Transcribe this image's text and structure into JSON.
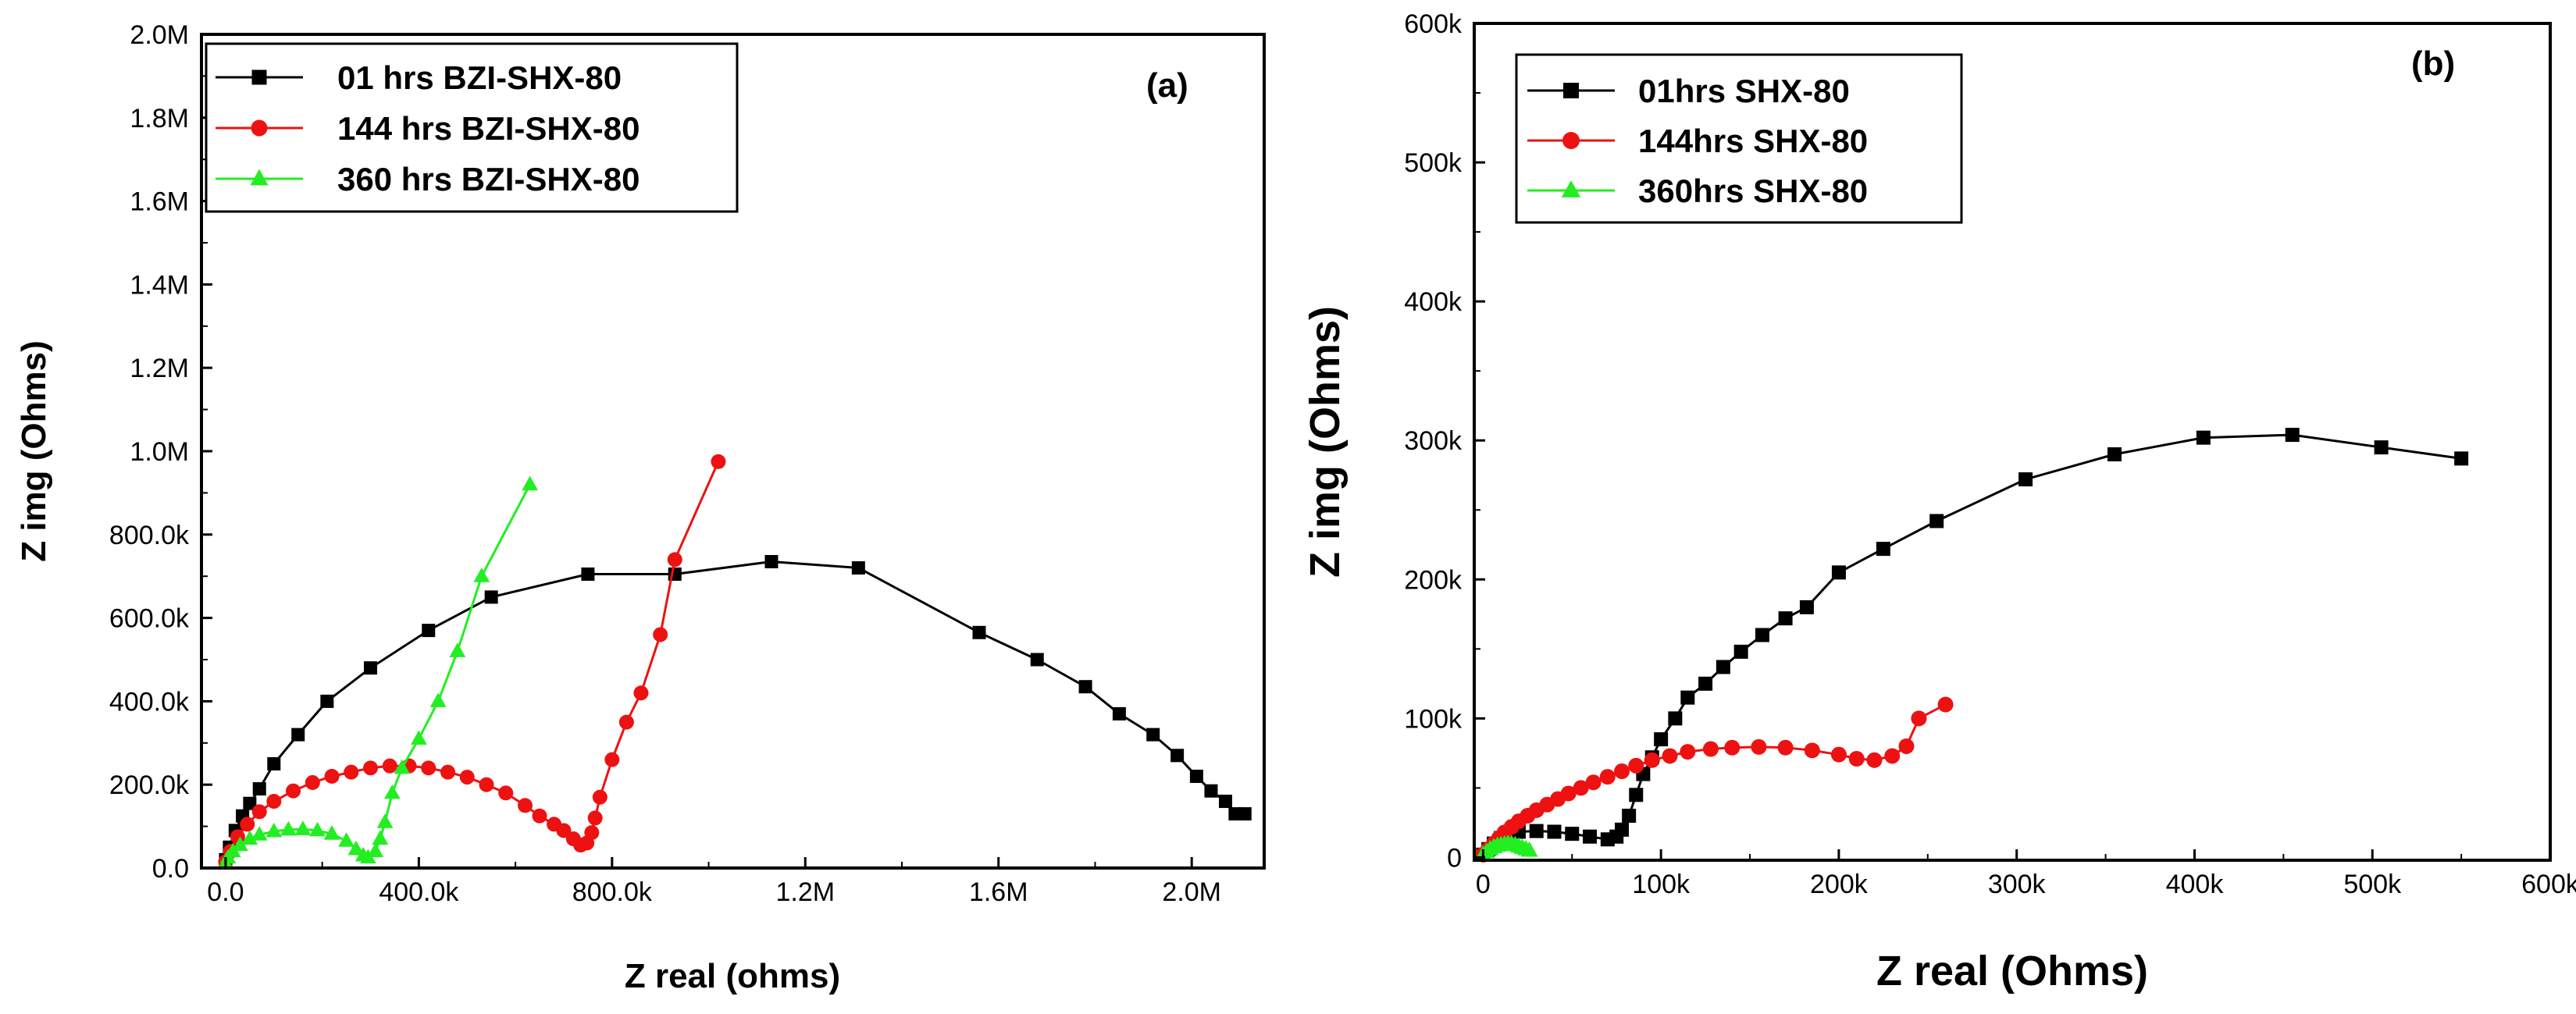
{
  "chart_data": [
    {
      "type": "line",
      "panel_label": "(a)",
      "xlabel": "Z real (ohms)",
      "ylabel": "Z img (Ohms)",
      "xlim": [
        -50000,
        2150000
      ],
      "ylim": [
        0,
        2000000
      ],
      "x_ticks": [
        {
          "v": 0,
          "label": "0.0"
        },
        {
          "v": 400000,
          "label": "400.0k"
        },
        {
          "v": 800000,
          "label": "800.0k"
        },
        {
          "v": 1200000,
          "label": "1.2M"
        },
        {
          "v": 1600000,
          "label": "1.6M"
        },
        {
          "v": 2000000,
          "label": "2.0M"
        }
      ],
      "y_ticks": [
        {
          "v": 0,
          "label": "0.0"
        },
        {
          "v": 200000,
          "label": "200.0k"
        },
        {
          "v": 400000,
          "label": "400.0k"
        },
        {
          "v": 600000,
          "label": "600.0k"
        },
        {
          "v": 800000,
          "label": "800.0k"
        },
        {
          "v": 1000000,
          "label": "1.0M"
        },
        {
          "v": 1200000,
          "label": "1.2M"
        },
        {
          "v": 1400000,
          "label": "1.4M"
        },
        {
          "v": 1600000,
          "label": "1.6M"
        },
        {
          "v": 1800000,
          "label": "1.8M"
        },
        {
          "v": 2000000,
          "label": "2.0M"
        }
      ],
      "legend_position": "top-left",
      "series": [
        {
          "name": "01 hrs   BZI-SHX-80",
          "color": "#000000",
          "marker": "square",
          "points": [
            [
              0,
              20000
            ],
            [
              8000,
              50000
            ],
            [
              20000,
              90000
            ],
            [
              35000,
              125000
            ],
            [
              50000,
              155000
            ],
            [
              70000,
              190000
            ],
            [
              100000,
              250000
            ],
            [
              150000,
              320000
            ],
            [
              210000,
              400000
            ],
            [
              300000,
              480000
            ],
            [
              420000,
              570000
            ],
            [
              550000,
              650000
            ],
            [
              750000,
              705000
            ],
            [
              930000,
              705000
            ],
            [
              1130000,
              735000
            ],
            [
              1310000,
              720000
            ],
            [
              1560000,
              565000
            ],
            [
              1680000,
              500000
            ],
            [
              1780000,
              435000
            ],
            [
              1850000,
              370000
            ],
            [
              1920000,
              320000
            ],
            [
              1970000,
              270000
            ],
            [
              2010000,
              220000
            ],
            [
              2040000,
              185000
            ],
            [
              2070000,
              160000
            ],
            [
              2090000,
              130000
            ],
            [
              2110000,
              130000
            ]
          ]
        },
        {
          "name": "144 hrs BZI-SHX-80",
          "color": "#ee1111",
          "marker": "circle",
          "points": [
            [
              0,
              15000
            ],
            [
              10000,
              40000
            ],
            [
              25000,
              75000
            ],
            [
              45000,
              105000
            ],
            [
              70000,
              135000
            ],
            [
              100000,
              160000
            ],
            [
              140000,
              185000
            ],
            [
              180000,
              205000
            ],
            [
              220000,
              220000
            ],
            [
              260000,
              230000
            ],
            [
              300000,
              240000
            ],
            [
              340000,
              245000
            ],
            [
              380000,
              245000
            ],
            [
              420000,
              240000
            ],
            [
              460000,
              230000
            ],
            [
              500000,
              218000
            ],
            [
              540000,
              200000
            ],
            [
              580000,
              180000
            ],
            [
              620000,
              150000
            ],
            [
              650000,
              125000
            ],
            [
              680000,
              105000
            ],
            [
              700000,
              90000
            ],
            [
              720000,
              70000
            ],
            [
              735000,
              55000
            ],
            [
              748000,
              60000
            ],
            [
              758000,
              85000
            ],
            [
              765000,
              120000
            ],
            [
              775000,
              170000
            ],
            [
              800000,
              260000
            ],
            [
              830000,
              350000
            ],
            [
              860000,
              420000
            ],
            [
              900000,
              560000
            ],
            [
              930000,
              740000
            ],
            [
              1020000,
              975000
            ]
          ]
        },
        {
          "name": "360 hrs BZI-SHX-80",
          "color": "#22ee22",
          "marker": "triangle",
          "points": [
            [
              0,
              10000
            ],
            [
              5000,
              25000
            ],
            [
              15000,
              40000
            ],
            [
              30000,
              55000
            ],
            [
              50000,
              70000
            ],
            [
              70000,
              80000
            ],
            [
              100000,
              88000
            ],
            [
              130000,
              92000
            ],
            [
              160000,
              93000
            ],
            [
              190000,
              90000
            ],
            [
              220000,
              82000
            ],
            [
              250000,
              65000
            ],
            [
              270000,
              45000
            ],
            [
              285000,
              30000
            ],
            [
              295000,
              25000
            ],
            [
              310000,
              40000
            ],
            [
              320000,
              70000
            ],
            [
              330000,
              110000
            ],
            [
              345000,
              180000
            ],
            [
              365000,
              240000
            ],
            [
              400000,
              310000
            ],
            [
              440000,
              400000
            ],
            [
              480000,
              520000
            ],
            [
              530000,
              700000
            ],
            [
              630000,
              920000
            ]
          ]
        }
      ]
    },
    {
      "type": "line",
      "panel_label": "(b)",
      "xlabel": "Z real (Ohms)",
      "ylabel": "Z img (Ohms)",
      "xlim": [
        -5000,
        600000
      ],
      "ylim": [
        -2000,
        600000
      ],
      "x_ticks": [
        {
          "v": 0,
          "label": "0"
        },
        {
          "v": 100000,
          "label": "100k"
        },
        {
          "v": 200000,
          "label": "200k"
        },
        {
          "v": 300000,
          "label": "300k"
        },
        {
          "v": 400000,
          "label": "400k"
        },
        {
          "v": 500000,
          "label": "500k"
        },
        {
          "v": 600000,
          "label": "600k"
        }
      ],
      "y_ticks": [
        {
          "v": 0,
          "label": "0"
        },
        {
          "v": 100000,
          "label": "100k"
        },
        {
          "v": 200000,
          "label": "200k"
        },
        {
          "v": 300000,
          "label": "300k"
        },
        {
          "v": 400000,
          "label": "400k"
        },
        {
          "v": 500000,
          "label": "500k"
        },
        {
          "v": 600000,
          "label": "600k"
        }
      ],
      "legend_position": "top-left",
      "series": [
        {
          "name": "01hrs    SHX-80",
          "color": "#000000",
          "marker": "square",
          "points": [
            [
              0,
              2000
            ],
            [
              3000,
              6000
            ],
            [
              6000,
              10000
            ],
            [
              10000,
              14000
            ],
            [
              15000,
              17000
            ],
            [
              20000,
              18500
            ],
            [
              30000,
              19000
            ],
            [
              40000,
              18500
            ],
            [
              50000,
              17000
            ],
            [
              60000,
              15000
            ],
            [
              70000,
              13000
            ],
            [
              75000,
              15000
            ],
            [
              78000,
              20000
            ],
            [
              82000,
              30000
            ],
            [
              86000,
              45000
            ],
            [
              90000,
              60000
            ],
            [
              95000,
              72000
            ],
            [
              100000,
              85000
            ],
            [
              108000,
              100000
            ],
            [
              115000,
              115000
            ],
            [
              125000,
              125000
            ],
            [
              135000,
              137000
            ],
            [
              145000,
              148000
            ],
            [
              157000,
              160000
            ],
            [
              170000,
              172000
            ],
            [
              182000,
              180000
            ],
            [
              200000,
              205000
            ],
            [
              225000,
              222000
            ],
            [
              255000,
              242000
            ],
            [
              305000,
              272000
            ],
            [
              355000,
              290000
            ],
            [
              405000,
              302000
            ],
            [
              455000,
              304000
            ],
            [
              505000,
              295000
            ],
            [
              550000,
              287000
            ]
          ]
        },
        {
          "name": "144hrs   SHX-80",
          "color": "#ee1111",
          "marker": "circle",
          "points": [
            [
              0,
              2000
            ],
            [
              3000,
              6000
            ],
            [
              6000,
              10000
            ],
            [
              9000,
              14000
            ],
            [
              12000,
              18000
            ],
            [
              16000,
              22000
            ],
            [
              20000,
              26000
            ],
            [
              25000,
              30000
            ],
            [
              30000,
              34000
            ],
            [
              36000,
              38000
            ],
            [
              42000,
              42000
            ],
            [
              48000,
              46000
            ],
            [
              55000,
              50000
            ],
            [
              62000,
              54000
            ],
            [
              70000,
              58000
            ],
            [
              78000,
              62000
            ],
            [
              86000,
              66000
            ],
            [
              95000,
              70000
            ],
            [
              105000,
              73000
            ],
            [
              115000,
              76000
            ],
            [
              128000,
              78000
            ],
            [
              140000,
              79000
            ],
            [
              155000,
              79500
            ],
            [
              170000,
              79000
            ],
            [
              185000,
              77000
            ],
            [
              200000,
              74000
            ],
            [
              210000,
              71000
            ],
            [
              220000,
              70000
            ],
            [
              230000,
              73000
            ],
            [
              238000,
              80000
            ],
            [
              245000,
              100000
            ],
            [
              260000,
              110000
            ]
          ]
        },
        {
          "name": "360hrs   SHX-80",
          "color": "#22ee22",
          "marker": "triangle",
          "points": [
            [
              0,
              2000
            ],
            [
              2000,
              4000
            ],
            [
              4000,
              6000
            ],
            [
              6000,
              7500
            ],
            [
              8000,
              8500
            ],
            [
              10000,
              9000
            ],
            [
              12000,
              9500
            ],
            [
              14000,
              9800
            ],
            [
              16000,
              9700
            ],
            [
              18000,
              9000
            ],
            [
              20000,
              8000
            ],
            [
              22000,
              7000
            ],
            [
              24000,
              6000
            ],
            [
              26000,
              5000
            ]
          ]
        }
      ]
    }
  ]
}
